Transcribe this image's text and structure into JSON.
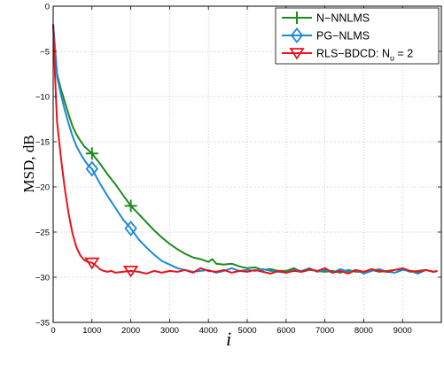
{
  "chart_data": {
    "type": "line",
    "xlabel": "i",
    "ylabel": "MSD, dB",
    "xlim": [
      0,
      10000
    ],
    "ylim": [
      -35,
      0
    ],
    "xticks": [
      0,
      1000,
      2000,
      3000,
      4000,
      5000,
      6000,
      7000,
      8000,
      9000
    ],
    "yticks": [
      0,
      -5,
      -10,
      -15,
      -20,
      -25,
      -30,
      -35
    ],
    "grid": true,
    "legend_position": "top-right",
    "series": [
      {
        "name": "N−NNLMS",
        "color": "#1f8a1f",
        "marker": "plus",
        "marker_x": [
          1000,
          2000
        ],
        "x": [
          0,
          100,
          200,
          300,
          400,
          500,
          600,
          700,
          800,
          900,
          1000,
          1200,
          1400,
          1600,
          1800,
          2000,
          2200,
          2400,
          2600,
          2800,
          3000,
          3200,
          3400,
          3600,
          3800,
          4000,
          4100,
          4200,
          4400,
          4600,
          4800,
          5000,
          5200,
          5400,
          5600,
          5800,
          6000,
          6200,
          6400,
          6600,
          6800,
          7000,
          7200,
          7400,
          7600,
          7800,
          8000,
          8200,
          8400,
          8600,
          8800,
          9000,
          9200,
          9400,
          9600,
          9800,
          9900
        ],
        "y": [
          -2,
          -7.5,
          -9.2,
          -10.6,
          -12.0,
          -13.3,
          -14.2,
          -14.9,
          -15.5,
          -15.9,
          -16.3,
          -17.4,
          -18.6,
          -19.7,
          -20.9,
          -22.1,
          -23.0,
          -23.9,
          -24.8,
          -25.6,
          -26.3,
          -26.9,
          -27.4,
          -27.8,
          -28.0,
          -28.3,
          -28.0,
          -28.5,
          -28.6,
          -28.5,
          -28.8,
          -29.0,
          -28.9,
          -29.2,
          -29.1,
          -29.3,
          -29.3,
          -29.0,
          -29.4,
          -29.2,
          -29.3,
          -29.4,
          -29.3,
          -29.5,
          -29.2,
          -29.4,
          -29.4,
          -29.2,
          -29.4,
          -29.3,
          -29.2,
          -29.1,
          -29.4,
          -29.3,
          -29.2,
          -29.4,
          -29.3
        ]
      },
      {
        "name": "PG−NLMS",
        "color": "#1a8ad6",
        "marker": "diamond",
        "marker_x": [
          1000,
          2000
        ],
        "x": [
          0,
          100,
          200,
          300,
          400,
          500,
          600,
          700,
          800,
          900,
          1000,
          1200,
          1400,
          1600,
          1800,
          2000,
          2200,
          2400,
          2600,
          2800,
          3000,
          3200,
          3400,
          3600,
          3800,
          4000,
          4200,
          4400,
          4600,
          4800,
          5000,
          5200,
          5400,
          5600,
          5800,
          6000,
          6200,
          6400,
          6600,
          6800,
          7000,
          7200,
          7400,
          7600,
          7800,
          8000,
          8200,
          8400,
          8600,
          8800,
          9000,
          9200,
          9400,
          9600,
          9800,
          9900
        ],
        "y": [
          -2,
          -7.8,
          -9.8,
          -11.5,
          -13.0,
          -14.4,
          -15.5,
          -16.3,
          -17.0,
          -17.6,
          -18.0,
          -19.6,
          -21.0,
          -22.3,
          -23.6,
          -24.6,
          -25.8,
          -26.7,
          -27.5,
          -28.2,
          -28.6,
          -29.0,
          -29.2,
          -29.4,
          -29.3,
          -29.2,
          -29.5,
          -29.3,
          -29.0,
          -29.3,
          -29.2,
          -29.3,
          -29.1,
          -29.3,
          -29.4,
          -29.5,
          -29.2,
          -29.3,
          -29.0,
          -29.4,
          -29.2,
          -29.5,
          -29.1,
          -29.4,
          -29.2,
          -29.6,
          -29.3,
          -29.1,
          -29.4,
          -29.5,
          -29.2,
          -29.3,
          -29.6,
          -29.2,
          -29.4,
          -29.3
        ]
      },
      {
        "name": "RLS−BDCD: N",
        "name_subscript": "u",
        "name_suffix": " = 2",
        "color": "#e8131c",
        "marker": "triangle-down",
        "marker_x": [
          1000,
          2000
        ],
        "x": [
          0,
          50,
          100,
          200,
          300,
          400,
          500,
          600,
          700,
          800,
          900,
          1000,
          1100,
          1200,
          1300,
          1400,
          1500,
          1600,
          1800,
          2000,
          2200,
          2400,
          2600,
          2800,
          3000,
          3200,
          3400,
          3600,
          3800,
          4000,
          4200,
          4400,
          4600,
          4800,
          5000,
          5200,
          5400,
          5600,
          5800,
          6000,
          6200,
          6400,
          6600,
          6800,
          7000,
          7200,
          7400,
          7600,
          7800,
          8000,
          8200,
          8400,
          8600,
          8800,
          9000,
          9200,
          9400,
          9600,
          9800,
          9900
        ],
        "y": [
          -2,
          -8,
          -12.8,
          -16.8,
          -20.2,
          -23.0,
          -25.2,
          -26.7,
          -27.6,
          -28.1,
          -28.3,
          -28.4,
          -28.7,
          -29.1,
          -29.3,
          -29.4,
          -29.3,
          -29.5,
          -29.4,
          -29.3,
          -29.4,
          -29.6,
          -29.3,
          -29.5,
          -29.3,
          -29.4,
          -29.2,
          -29.5,
          -29.0,
          -29.3,
          -29.4,
          -29.2,
          -29.5,
          -29.3,
          -29.4,
          -29.2,
          -29.4,
          -29.6,
          -29.3,
          -29.5,
          -29.3,
          -29.4,
          -29.1,
          -29.3,
          -29.0,
          -29.5,
          -29.3,
          -29.6,
          -29.2,
          -29.4,
          -29.1,
          -29.3,
          -29.4,
          -29.2,
          -29.0,
          -29.3,
          -29.4,
          -29.2,
          -29.4,
          -29.3
        ]
      }
    ]
  }
}
